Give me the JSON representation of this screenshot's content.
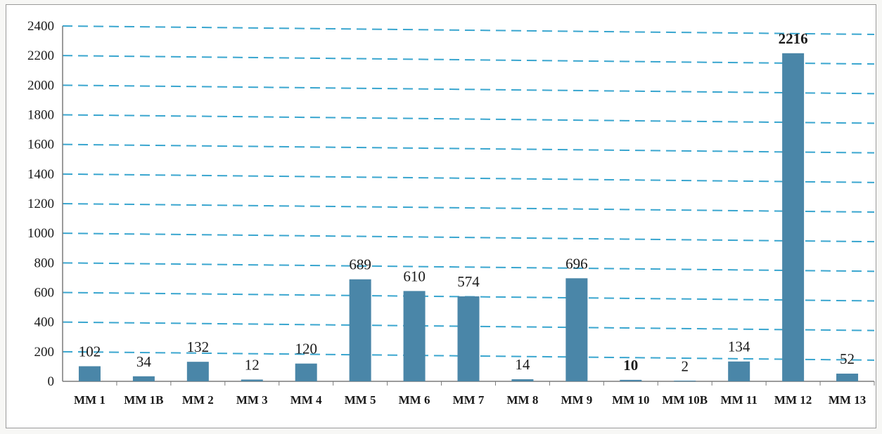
{
  "chart_data": {
    "type": "bar",
    "categories": [
      "MM 1",
      "MM 1B",
      "MM 2",
      "MM 3",
      "MM 4",
      "MM 5",
      "MM 6",
      "MM 7",
      "MM 8",
      "MM 9",
      "MM 10",
      "MM 10B",
      "MM 11",
      "MM 12",
      "MM 13"
    ],
    "values": [
      102,
      34,
      132,
      12,
      120,
      689,
      610,
      574,
      14,
      696,
      10,
      2,
      134,
      2216,
      52
    ],
    "data_labels": [
      "102",
      "34",
      "132",
      "12",
      "120",
      "689",
      "610",
      "574",
      "14",
      "696",
      "10",
      "2",
      "134",
      "2216",
      "52"
    ],
    "label_colors": {
      "10": "#111111",
      "11": "#3a9a5a",
      "13": "#b53a3a"
    },
    "bold_labels": [
      10,
      13
    ],
    "ylim": [
      0,
      2400
    ],
    "yticks": [
      0,
      200,
      400,
      600,
      800,
      1000,
      1200,
      1400,
      1600,
      1800,
      2000,
      2200,
      2400
    ],
    "ytick_labels": [
      "0",
      "200",
      "400",
      "600",
      "800",
      "1000",
      "1200",
      "1400",
      "1600",
      "1800",
      "2000",
      "2200",
      "2400"
    ],
    "title": "",
    "xlabel": "",
    "ylabel": "",
    "grid": true,
    "colors": {
      "bar": "#4a86a8",
      "grid": "#3aa6cf",
      "axis": "#7a7a7a"
    }
  }
}
